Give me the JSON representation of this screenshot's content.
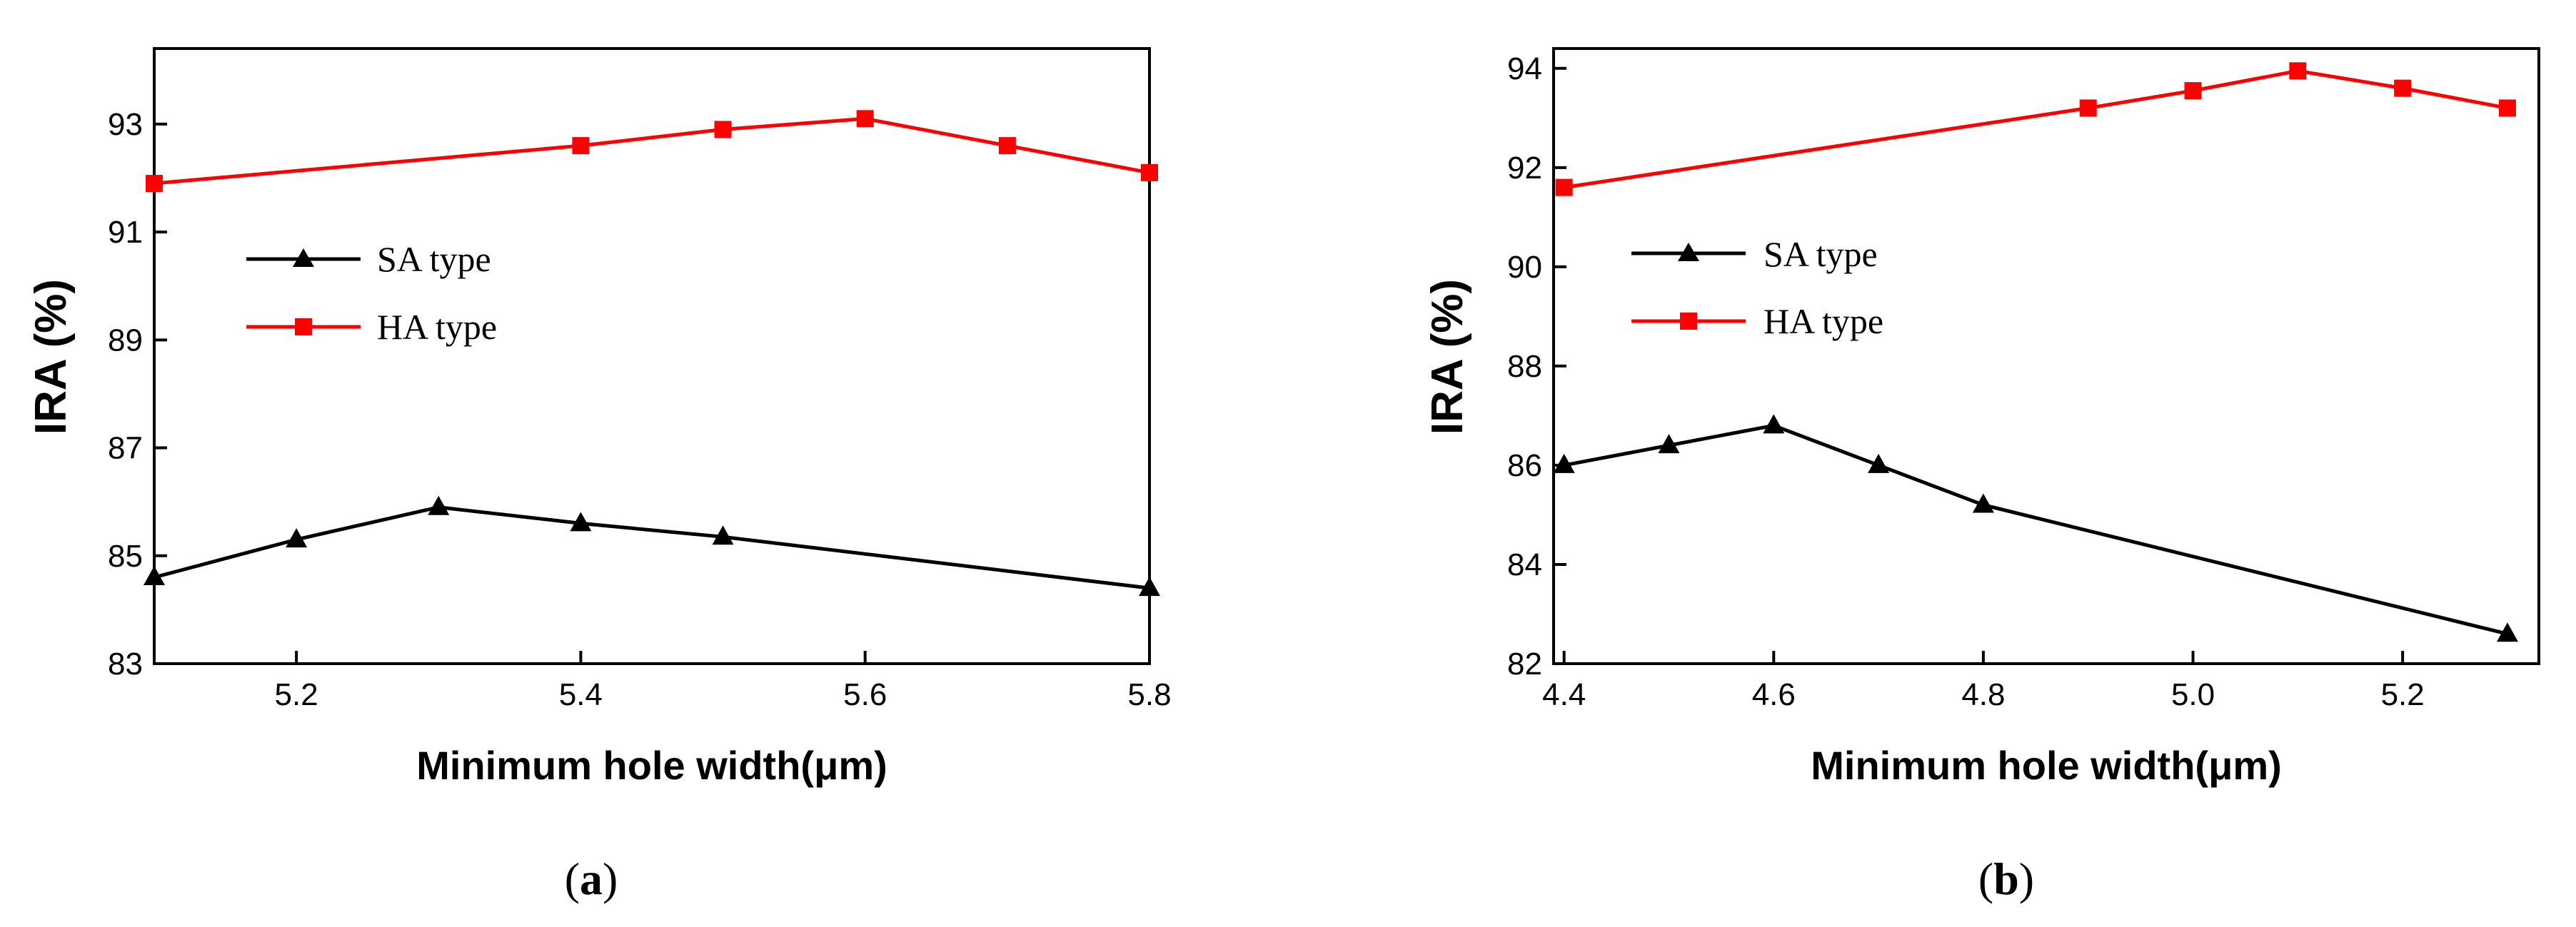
{
  "chart_data": [
    {
      "type": "line",
      "panel": "a",
      "panel_label_prefix": "(",
      "panel_label_letter": "a",
      "panel_label_suffix": ")",
      "xlabel": "Minimum hole width(μm)",
      "ylabel": "IRA (%)",
      "xlim": [
        5.1,
        5.8
      ],
      "ylim": [
        83,
        94.4
      ],
      "xticks": [
        5.2,
        5.4,
        5.6,
        5.8
      ],
      "xtick_labels": [
        "5.2",
        "5.4",
        "5.6",
        "5.8"
      ],
      "yticks": [
        83,
        85,
        87,
        89,
        91,
        93
      ],
      "ytick_labels": [
        "83",
        "85",
        "87",
        "89",
        "91",
        "93"
      ],
      "legend_position": "center-left",
      "series": [
        {
          "name": "SA  type",
          "color": "#000000",
          "marker": "triangle",
          "x": [
            5.1,
            5.2,
            5.3,
            5.4,
            5.5,
            5.8
          ],
          "values": [
            84.6,
            85.3,
            85.9,
            85.6,
            85.35,
            84.4
          ]
        },
        {
          "name": "HA type",
          "color": "#ff0000",
          "marker": "square",
          "x": [
            5.1,
            5.4,
            5.5,
            5.6,
            5.7,
            5.8
          ],
          "values": [
            91.9,
            92.6,
            92.9,
            93.1,
            92.6,
            92.1
          ]
        }
      ]
    },
    {
      "type": "line",
      "panel": "b",
      "panel_label_prefix": "(",
      "panel_label_letter": "b",
      "panel_label_suffix": ")",
      "xlabel": "Minimum hole width(μm)",
      "ylabel": "IRA (%)",
      "xlim": [
        4.39,
        5.33
      ],
      "ylim": [
        82,
        94.4
      ],
      "xticks": [
        4.4,
        4.6,
        4.8,
        5.0,
        5.2
      ],
      "xtick_labels": [
        "4.4",
        "4.6",
        "4.8",
        "5.0",
        "5.2"
      ],
      "yticks": [
        82,
        84,
        86,
        88,
        90,
        92,
        94
      ],
      "ytick_labels": [
        "82",
        "84",
        "86",
        "88",
        "90",
        "92",
        "94"
      ],
      "legend_position": "center-left",
      "series": [
        {
          "name": "SA  type",
          "color": "#000000",
          "marker": "triangle",
          "x": [
            4.4,
            4.5,
            4.6,
            4.7,
            4.8,
            5.3
          ],
          "values": [
            86.0,
            86.4,
            86.8,
            86.0,
            85.2,
            82.6
          ]
        },
        {
          "name": "HA type",
          "color": "#ff0000",
          "marker": "square",
          "x": [
            4.4,
            4.9,
            5.0,
            5.1,
            5.2,
            5.3
          ],
          "values": [
            91.6,
            93.2,
            93.55,
            93.95,
            93.6,
            93.2
          ]
        }
      ]
    }
  ]
}
